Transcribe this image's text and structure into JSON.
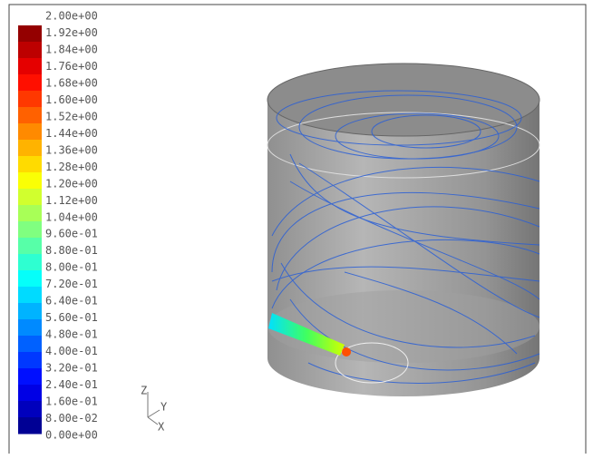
{
  "colorbar": {
    "labels": [
      "2.00e+00",
      "1.92e+00",
      "1.84e+00",
      "1.76e+00",
      "1.68e+00",
      "1.60e+00",
      "1.52e+00",
      "1.44e+00",
      "1.36e+00",
      "1.28e+00",
      "1.20e+00",
      "1.12e+00",
      "1.04e+00",
      "9.60e-01",
      "8.80e-01",
      "8.00e-01",
      "7.20e-01",
      "6.40e-01",
      "5.60e-01",
      "4.80e-01",
      "4.00e-01",
      "3.20e-01",
      "2.40e-01",
      "1.60e-01",
      "8.00e-02",
      "0.00e+00"
    ]
  },
  "axes_triad": {
    "z": "Z",
    "y": "Y",
    "x": "X"
  }
}
